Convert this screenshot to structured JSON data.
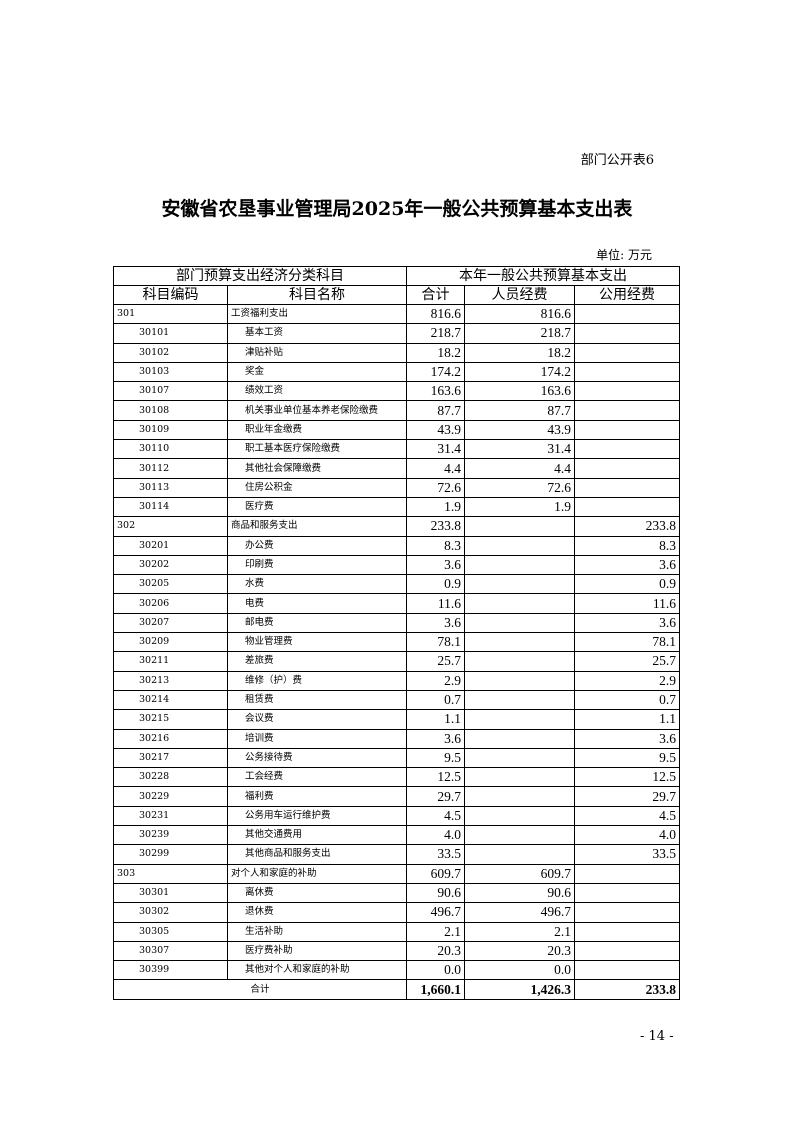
{
  "table_label": "部门公开表6",
  "title": "安徽省农垦事业管理局2025年一般公共预算基本支出表",
  "unit": "单位: 万元",
  "header": {
    "group_left": "部门预算支出经济分类科目",
    "group_right": "本年一般公共预算基本支出",
    "cols": [
      "科目编码",
      "科目名称",
      "合计",
      "人员经费",
      "公用经费"
    ]
  },
  "rows": [
    {
      "code": "301",
      "name": "工资福利支出",
      "total": "816.6",
      "personnel": "816.6",
      "public": "",
      "level": 1
    },
    {
      "code": "30101",
      "name": "基本工资",
      "total": "218.7",
      "personnel": "218.7",
      "public": "",
      "level": 2
    },
    {
      "code": "30102",
      "name": "津贴补贴",
      "total": "18.2",
      "personnel": "18.2",
      "public": "",
      "level": 2
    },
    {
      "code": "30103",
      "name": "奖金",
      "total": "174.2",
      "personnel": "174.2",
      "public": "",
      "level": 2
    },
    {
      "code": "30107",
      "name": "绩效工资",
      "total": "163.6",
      "personnel": "163.6",
      "public": "",
      "level": 2
    },
    {
      "code": "30108",
      "name": "机关事业单位基本养老保险缴费",
      "total": "87.7",
      "personnel": "87.7",
      "public": "",
      "level": 2
    },
    {
      "code": "30109",
      "name": "职业年金缴费",
      "total": "43.9",
      "personnel": "43.9",
      "public": "",
      "level": 2
    },
    {
      "code": "30110",
      "name": "职工基本医疗保险缴费",
      "total": "31.4",
      "personnel": "31.4",
      "public": "",
      "level": 2
    },
    {
      "code": "30112",
      "name": "其他社会保障缴费",
      "total": "4.4",
      "personnel": "4.4",
      "public": "",
      "level": 2
    },
    {
      "code": "30113",
      "name": "住房公积金",
      "total": "72.6",
      "personnel": "72.6",
      "public": "",
      "level": 2
    },
    {
      "code": "30114",
      "name": "医疗费",
      "total": "1.9",
      "personnel": "1.9",
      "public": "",
      "level": 2
    },
    {
      "code": "302",
      "name": "商品和服务支出",
      "total": "233.8",
      "personnel": "",
      "public": "233.8",
      "level": 1
    },
    {
      "code": "30201",
      "name": "办公费",
      "total": "8.3",
      "personnel": "",
      "public": "8.3",
      "level": 2
    },
    {
      "code": "30202",
      "name": "印刷费",
      "total": "3.6",
      "personnel": "",
      "public": "3.6",
      "level": 2
    },
    {
      "code": "30205",
      "name": "水费",
      "total": "0.9",
      "personnel": "",
      "public": "0.9",
      "level": 2
    },
    {
      "code": "30206",
      "name": "电费",
      "total": "11.6",
      "personnel": "",
      "public": "11.6",
      "level": 2
    },
    {
      "code": "30207",
      "name": "邮电费",
      "total": "3.6",
      "personnel": "",
      "public": "3.6",
      "level": 2
    },
    {
      "code": "30209",
      "name": "物业管理费",
      "total": "78.1",
      "personnel": "",
      "public": "78.1",
      "level": 2
    },
    {
      "code": "30211",
      "name": "差旅费",
      "total": "25.7",
      "personnel": "",
      "public": "25.7",
      "level": 2
    },
    {
      "code": "30213",
      "name": "维修（护）费",
      "total": "2.9",
      "personnel": "",
      "public": "2.9",
      "level": 2
    },
    {
      "code": "30214",
      "name": "租赁费",
      "total": "0.7",
      "personnel": "",
      "public": "0.7",
      "level": 2
    },
    {
      "code": "30215",
      "name": "会议费",
      "total": "1.1",
      "personnel": "",
      "public": "1.1",
      "level": 2
    },
    {
      "code": "30216",
      "name": "培训费",
      "total": "3.6",
      "personnel": "",
      "public": "3.6",
      "level": 2
    },
    {
      "code": "30217",
      "name": "公务接待费",
      "total": "9.5",
      "personnel": "",
      "public": "9.5",
      "level": 2
    },
    {
      "code": "30228",
      "name": "工会经费",
      "total": "12.5",
      "personnel": "",
      "public": "12.5",
      "level": 2
    },
    {
      "code": "30229",
      "name": "福利费",
      "total": "29.7",
      "personnel": "",
      "public": "29.7",
      "level": 2
    },
    {
      "code": "30231",
      "name": "公务用车运行维护费",
      "total": "4.5",
      "personnel": "",
      "public": "4.5",
      "level": 2
    },
    {
      "code": "30239",
      "name": "其他交通费用",
      "total": "4.0",
      "personnel": "",
      "public": "4.0",
      "level": 2
    },
    {
      "code": "30299",
      "name": "其他商品和服务支出",
      "total": "33.5",
      "personnel": "",
      "public": "33.5",
      "level": 2
    },
    {
      "code": "303",
      "name": "对个人和家庭的补助",
      "total": "609.7",
      "personnel": "609.7",
      "public": "",
      "level": 1
    },
    {
      "code": "30301",
      "name": "离休费",
      "total": "90.6",
      "personnel": "90.6",
      "public": "",
      "level": 2
    },
    {
      "code": "30302",
      "name": "退休费",
      "total": "496.7",
      "personnel": "496.7",
      "public": "",
      "level": 2
    },
    {
      "code": "30305",
      "name": "生活补助",
      "total": "2.1",
      "personnel": "2.1",
      "public": "",
      "level": 2
    },
    {
      "code": "30307",
      "name": "医疗费补助",
      "total": "20.3",
      "personnel": "20.3",
      "public": "",
      "level": 2
    },
    {
      "code": "30399",
      "name": "其他对个人和家庭的补助",
      "total": "0.0",
      "personnel": "0.0",
      "public": "",
      "level": 2
    }
  ],
  "total_row": {
    "label": "合计",
    "total": "1,660.1",
    "personnel": "1,426.3",
    "public": "233.8"
  },
  "page_number": "- 14 -"
}
